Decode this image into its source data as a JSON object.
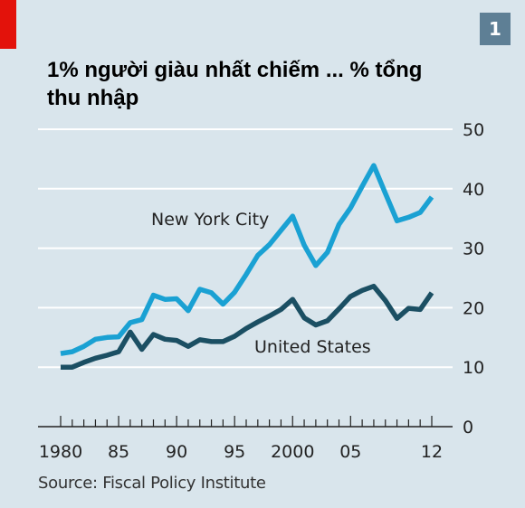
{
  "header": {
    "title": "1% người giàu nhất chiếm ... % tổng thu nhập",
    "badge": "1"
  },
  "source": "Source: Fiscal Policy Institute",
  "colors": {
    "background": "#d9e5ec",
    "nyc": "#1aa1d3",
    "us": "#1b4f63",
    "accent_red": "#e3120b",
    "badge": "#5e7f95",
    "grid": "#ffffff"
  },
  "chart_data": {
    "type": "line",
    "title": "1% người giàu nhất chiếm ... % tổng thu nhập",
    "ylim": [
      0,
      50
    ],
    "xlim": [
      1980,
      2012
    ],
    "y_ticks": [
      "50",
      "40",
      "30",
      "20",
      "10",
      "0"
    ],
    "y_tick_values": [
      50,
      40,
      30,
      20,
      10,
      0
    ],
    "x_tick_labels": [
      "1980",
      "85",
      "90",
      "95",
      "2000",
      "05",
      "12"
    ],
    "x_tick_values": [
      1980,
      1985,
      1990,
      1995,
      2000,
      2005,
      2012
    ],
    "grid": true,
    "x": [
      1980,
      1981,
      1982,
      1983,
      1984,
      1985,
      1986,
      1987,
      1988,
      1989,
      1990,
      1991,
      1992,
      1993,
      1994,
      1995,
      1996,
      1997,
      1998,
      1999,
      2000,
      2001,
      2002,
      2003,
      2004,
      2005,
      2006,
      2007,
      2008,
      2009,
      2010,
      2011,
      2012
    ],
    "series": [
      {
        "name": "New York City",
        "color": "#1aa1d3",
        "values": [
          12.3,
          12.6,
          13.5,
          14.7,
          15.0,
          15.1,
          17.5,
          18.0,
          22.1,
          21.4,
          21.5,
          19.5,
          23.1,
          22.5,
          20.6,
          22.6,
          25.6,
          28.8,
          30.6,
          33.0,
          35.4,
          30.5,
          27.1,
          29.3,
          34.0,
          36.8,
          40.4,
          43.9,
          39.2,
          34.6,
          35.2,
          36.0,
          38.6
        ]
      },
      {
        "name": "United States",
        "color": "#1b4f63",
        "values": [
          10.0,
          10.0,
          10.8,
          11.5,
          12.0,
          12.6,
          15.9,
          13.0,
          15.5,
          14.7,
          14.5,
          13.5,
          14.6,
          14.3,
          14.3,
          15.2,
          16.5,
          17.6,
          18.6,
          19.7,
          21.4,
          18.3,
          17.1,
          17.8,
          19.8,
          21.9,
          22.9,
          23.6,
          21.2,
          18.2,
          19.9,
          19.7,
          22.5
        ]
      }
    ]
  }
}
